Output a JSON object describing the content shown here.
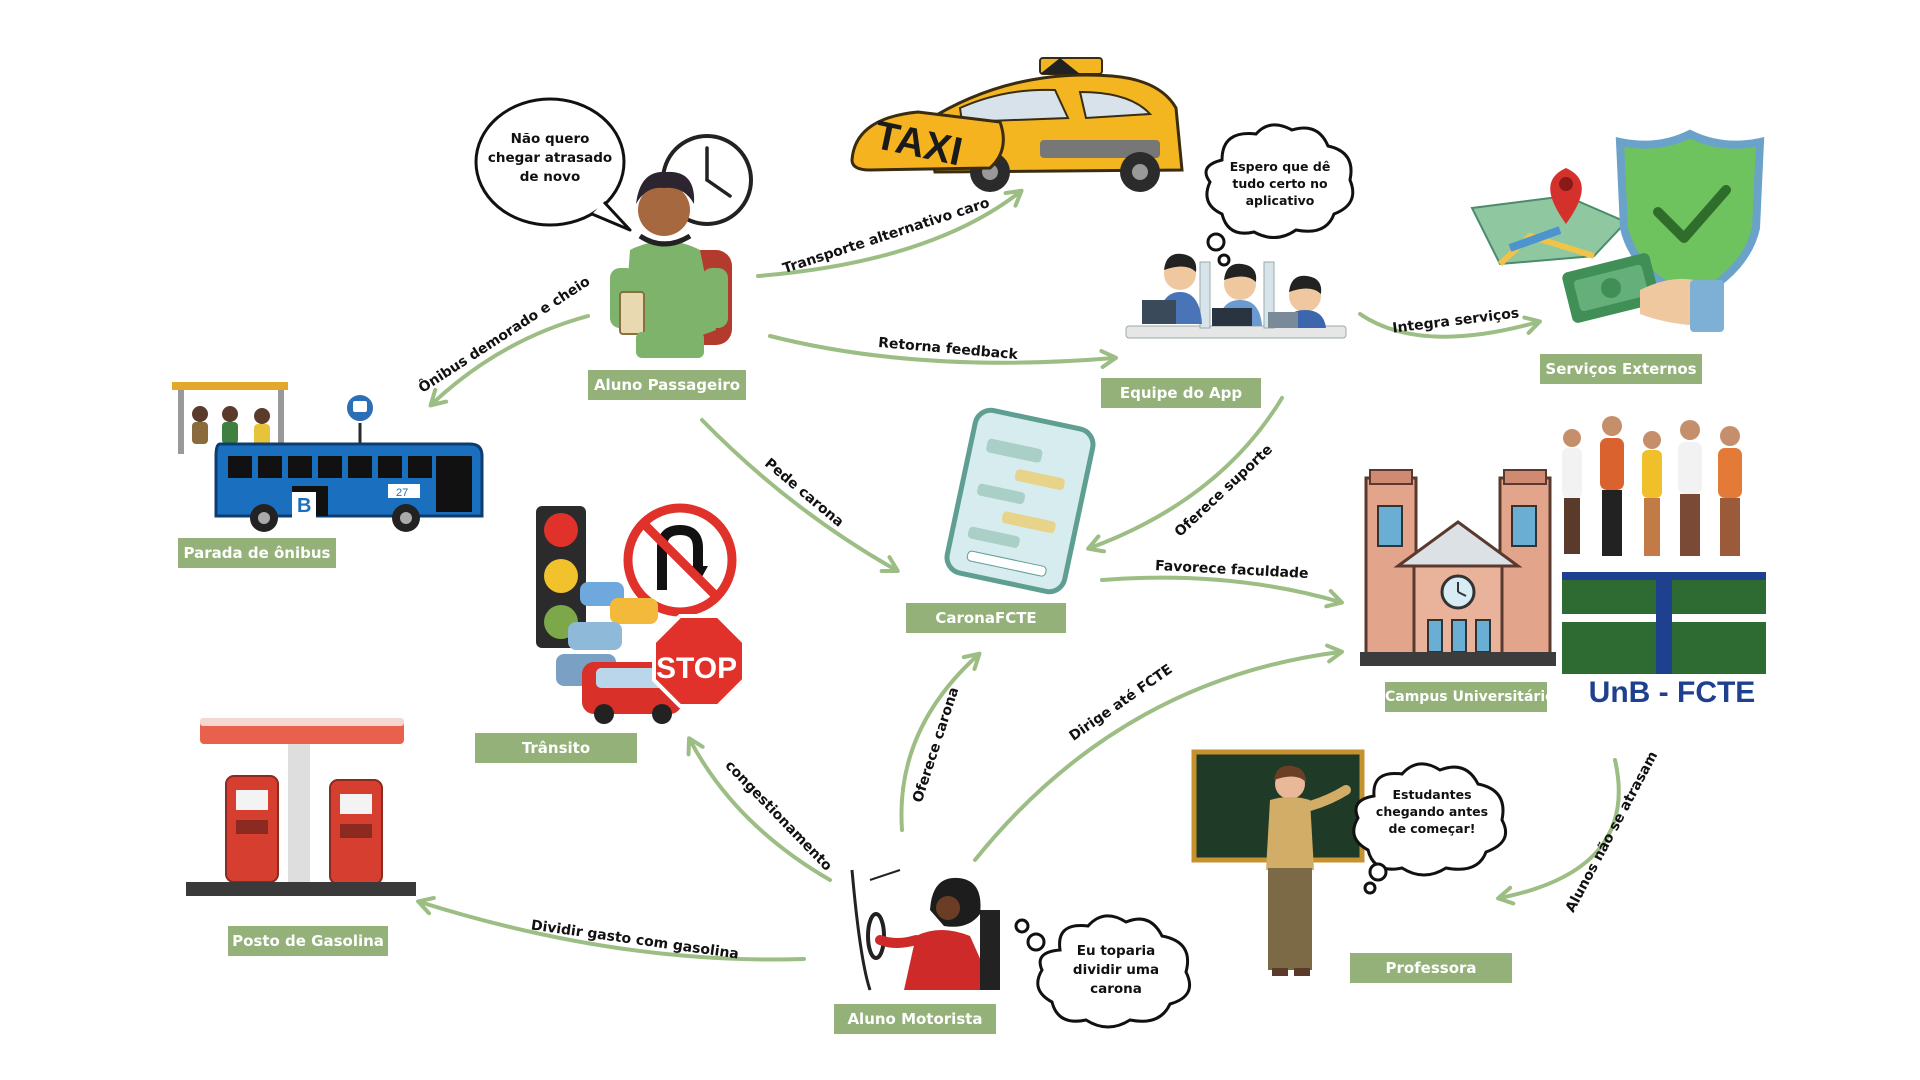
{
  "colors": {
    "node_fill": "#93b178",
    "arrow": "#9cbd83",
    "unb_green": "#2e6b32",
    "unb_blue": "#1f3f8f"
  },
  "nodes": {
    "aluno_passageiro": "Aluno Passageiro",
    "parada_onibus": "Parada de ônibus",
    "equipe_app": "Equipe do App",
    "servicos_externos": "Serviços Externos",
    "carona_fcte": "CaronaFCTE",
    "transito": "Trânsito",
    "campus": "Campus Universitário",
    "posto_gasolina": "Posto de Gasolina",
    "aluno_motorista": "Aluno Motorista",
    "professora": "Professora"
  },
  "edges": {
    "onibus": "Ônibus demorado e cheio",
    "taxi": "Transporte alternativo caro",
    "feedback": "Retorna feedback",
    "integra": "Integra serviços",
    "pede_carona": "Pede carona",
    "suporte": "Oferece suporte",
    "favorece": "Favorece faculdade",
    "oferece_carona": "Oferece carona",
    "dirige": "Dirige até FCTE",
    "congestionamento": "congestionamento",
    "gasolina": "Dividir gasto com gasolina",
    "nao_atrasam": "Alunos não se atrasam"
  },
  "bubbles": {
    "passageiro": "Não quero\nchegar atrasado\nde novo",
    "equipe": "Espero que dê\ntudo certo no\naplicativo",
    "professora": "Estudantes\nchegando antes\nde começar!",
    "motorista": "Eu toparia\ndividir uma\ncarona"
  },
  "images": {
    "taxi_sign": "TAXI",
    "stop_sign": "STOP",
    "bus_letter": "B",
    "bus_number": "27",
    "unb_logo_text": "UnB - FCTE"
  },
  "icons": [
    "clock-icon",
    "student-passenger-icon",
    "taxi-car-icon",
    "developer-team-icon",
    "map-pin-icon",
    "shield-check-icon",
    "money-hand-icon",
    "bus-stop-icon",
    "smartphone-chat-icon",
    "traffic-jam-icon",
    "campus-building-icon",
    "students-group-icon",
    "unb-logo",
    "gas-station-icon",
    "teacher-icon",
    "driver-student-icon"
  ]
}
